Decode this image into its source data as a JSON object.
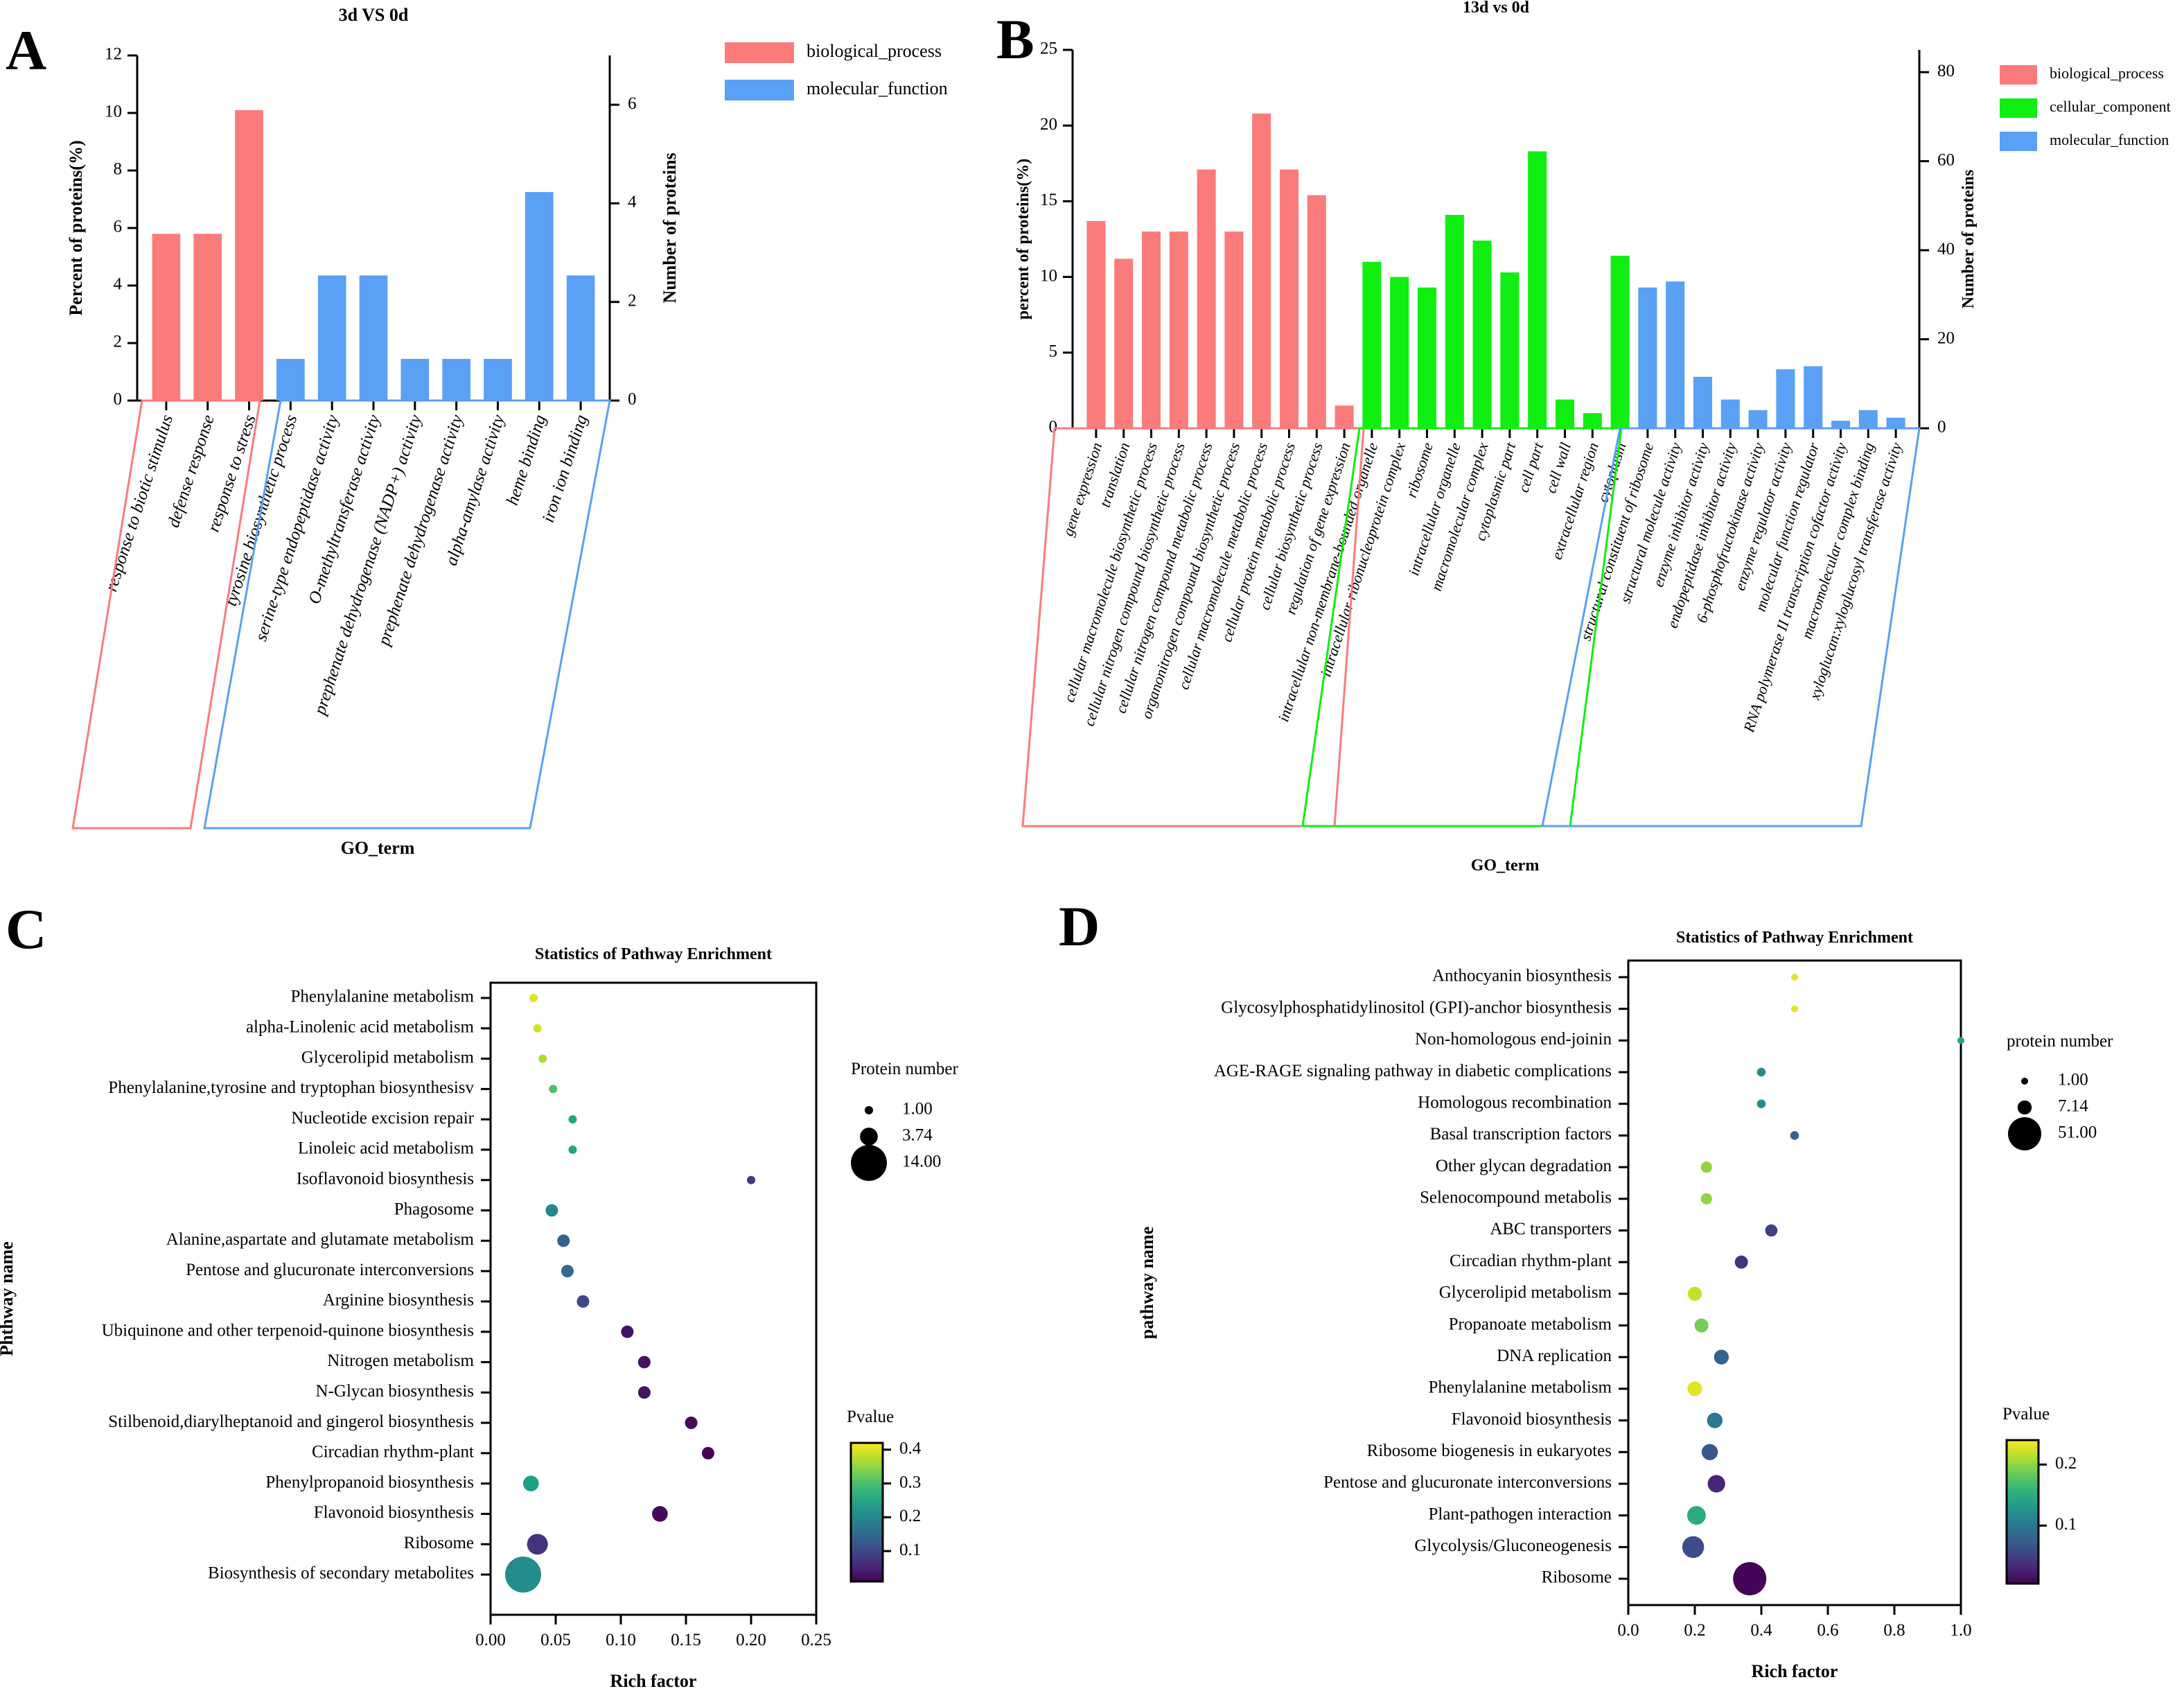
{
  "chart_data": [
    {
      "panel": "A",
      "type": "bar",
      "title": "3d VS 0d",
      "xlabel": "GO_term",
      "ylabel": "Percent of proteins(%)",
      "ylabel_right": "Number of proteins",
      "ylim": [
        0,
        12
      ],
      "ylim_right": [
        0,
        7
      ],
      "yticks": [
        0,
        2,
        4,
        6,
        8,
        10,
        12
      ],
      "yticks_right": [
        0,
        2,
        4,
        6
      ],
      "legend": [
        "biological_process",
        "molecular_function"
      ],
      "colors": {
        "biological_process": "#fb7b7b",
        "molecular_function": "#5aa0f5"
      },
      "categories": [
        "response to biotic stimulus",
        "defense response",
        "response to stress",
        "tyrosine biosynthetic process",
        "serine-type endopeptidase activity",
        "O-methyltransferase activity",
        "prephenate dehydrogenase (NADP+) activity",
        "prephenate dehydrogenase activity",
        "alpha-amylase activity",
        "heme binding",
        "iron ion binding"
      ],
      "groups": [
        "biological_process",
        "biological_process",
        "biological_process",
        "molecular_function",
        "molecular_function",
        "molecular_function",
        "molecular_function",
        "molecular_function",
        "molecular_function",
        "molecular_function",
        "molecular_function"
      ],
      "values": [
        5.8,
        5.8,
        10.1,
        1.45,
        4.35,
        4.35,
        1.45,
        1.45,
        1.45,
        7.25,
        4.35
      ]
    },
    {
      "panel": "B",
      "type": "bar",
      "title": "13d vs 0d",
      "xlabel": "GO_term",
      "ylabel": "percent of proteins(%)",
      "ylabel_right": "Number of proteins",
      "ylim": [
        0,
        25
      ],
      "ylim_right": [
        0,
        85
      ],
      "yticks": [
        0,
        5,
        10,
        15,
        20,
        25
      ],
      "yticks_right": [
        0,
        20,
        40,
        60,
        80
      ],
      "legend": [
        "biological_process",
        "cellular_component",
        "molecular_function"
      ],
      "colors": {
        "biological_process": "#fb7b7b",
        "cellular_component": "#11ee11",
        "molecular_function": "#5aa0f5"
      },
      "categories": [
        "gene expression",
        "translation",
        "cellular macromolecule biosynthetic process",
        "cellular nitrogen compound biosynthetic process",
        "cellular nitrogen compound metabolic process",
        "organonitrogen compound biosynthetic process",
        "cellular macromolecule metabolic process",
        "cellular protein metabolic process",
        "cellular biosynthetic process",
        "regulation of gene expression",
        "intracellular non-membrane-bounded organelle",
        "intracellular ribonucleoprotein complex",
        "ribosome",
        "intracellular organelle",
        "macromolecular complex",
        "cytoplasmic part",
        "cell part",
        "cell wall",
        "extracellular region",
        "cytoplasm",
        "structural constituent of ribosome",
        "structural molecule activity",
        "enzyme inhibitor activity",
        "endopeptidase inhibitor activity",
        "6-phosphofructokinase activity",
        "enzyme regulator activity",
        "molecular function regulator",
        "RNA polymerase II transcription cofactor activity",
        "macromolecular complex binding",
        "xyloglucan:xyloglucosyl transferase activity"
      ],
      "groups": [
        "biological_process",
        "biological_process",
        "biological_process",
        "biological_process",
        "biological_process",
        "biological_process",
        "biological_process",
        "biological_process",
        "biological_process",
        "biological_process",
        "cellular_component",
        "cellular_component",
        "cellular_component",
        "cellular_component",
        "cellular_component",
        "cellular_component",
        "cellular_component",
        "cellular_component",
        "cellular_component",
        "cellular_component",
        "molecular_function",
        "molecular_function",
        "molecular_function",
        "molecular_function",
        "molecular_function",
        "molecular_function",
        "molecular_function",
        "molecular_function",
        "molecular_function",
        "molecular_function"
      ],
      "values": [
        13.7,
        11.2,
        13.0,
        13.0,
        17.1,
        13.0,
        20.8,
        17.1,
        15.4,
        1.5,
        11.0,
        10.0,
        9.3,
        14.1,
        12.4,
        10.3,
        18.3,
        1.9,
        1.0,
        11.4,
        9.3,
        9.7,
        3.4,
        1.9,
        1.2,
        3.9,
        4.1,
        0.5,
        1.2,
        0.7
      ]
    },
    {
      "panel": "C",
      "type": "scatter",
      "title": "Statistics of Pathway Enrichment",
      "xlabel": "Rich factor",
      "ylabel": "Phthway name",
      "xlim": [
        0,
        0.25
      ],
      "xticks": [
        0.0,
        0.05,
        0.1,
        0.15,
        0.2,
        0.25
      ],
      "xtick_labels": [
        "0.00",
        "0.05",
        "0.10",
        "0.15",
        "0.20",
        "0.25"
      ],
      "size_legend_title": "Protein number",
      "size_legend": [
        "1.00",
        "3.74",
        "14.00"
      ],
      "color_legend_title": "Pvalue",
      "color_ticks": [
        "0.1",
        "0.2",
        "0.3",
        "0.4"
      ],
      "color_range": [
        0.01,
        0.42
      ],
      "pathways": [
        "Phenylalanine metabolism",
        "alpha-Linolenic acid metabolism",
        "Glycerolipid metabolism",
        "Phenylalanine,tyrosine and tryptophan biosynthesisv",
        "Nucleotide excision repair",
        "Linoleic acid metabolism",
        "Isoflavonoid biosynthesis",
        "Phagosome",
        "Alanine,aspartate and glutamate metabolism",
        "Pentose and glucuronate interconversions",
        "Arginine biosynthesis",
        "Ubiquinone and other terpenoid-quinone biosynthesis",
        "Nitrogen metabolism",
        "N-Glycan biosynthesis",
        "Stilbenoid,diarylheptanoid and gingerol biosynthesis",
        "Circadian rhythm-plant",
        "Phenylpropanoid biosynthesis",
        "Flavonoid biosynthesis",
        "Ribosome",
        "Biosynthesis of secondary metabolites"
      ],
      "rich_factor": [
        0.033,
        0.036,
        0.04,
        0.048,
        0.063,
        0.063,
        0.2,
        0.047,
        0.056,
        0.059,
        0.071,
        0.105,
        0.118,
        0.118,
        0.154,
        0.167,
        0.031,
        0.13,
        0.036,
        0.025
      ],
      "protein_number": [
        1,
        1,
        1,
        1,
        1,
        1,
        1,
        2,
        2,
        2,
        2,
        2,
        2,
        2,
        2,
        2,
        3,
        3,
        5,
        14
      ],
      "pvalue": [
        0.4,
        0.39,
        0.37,
        0.3,
        0.25,
        0.25,
        0.08,
        0.2,
        0.14,
        0.15,
        0.1,
        0.03,
        0.03,
        0.03,
        0.02,
        0.015,
        0.24,
        0.02,
        0.07,
        0.21
      ]
    },
    {
      "panel": "D",
      "type": "scatter",
      "title": "Statistics of Pathway Enrichment",
      "xlabel": "Rich factor",
      "ylabel": "pathway name",
      "xlim": [
        0,
        1.0
      ],
      "xticks": [
        0.0,
        0.2,
        0.4,
        0.6,
        0.8,
        1.0
      ],
      "xtick_labels": [
        "0.0",
        "0.2",
        "0.4",
        "0.6",
        "0.8",
        "1.0"
      ],
      "size_legend_title": "protein number",
      "size_legend": [
        "1.00",
        "7.14",
        "51.00"
      ],
      "color_legend_title": "Pvalue",
      "color_ticks": [
        "0.1",
        "0.2"
      ],
      "color_range": [
        0.005,
        0.24
      ],
      "pathways": [
        "Anthocyanin biosynthesis",
        "Glycosylphosphatidylinositol (GPI)-anchor biosynthesis",
        "Non-homologous end-joinin",
        "AGE-RAGE signaling pathway in diabetic complications",
        "Homologous recombination",
        "Basal transcription factors",
        "Other glycan degradation",
        "Selenocompound metabolis",
        "ABC transporters",
        "Circadian rhythm-plant",
        "Glycerolipid metabolism",
        "Propanoate metabolism",
        "DNA replication",
        "Phenylalanine metabolism",
        "Flavonoid biosynthesis",
        "Ribosome biogenesis in eukaryotes",
        "Pentose and glucuronate interconversions",
        "Plant-pathogen interaction",
        "Glycolysis/Gluconeogenesis",
        "Ribosome"
      ],
      "rich_factor": [
        0.5,
        0.5,
        1.0,
        0.4,
        0.4,
        0.5,
        0.235,
        0.235,
        0.43,
        0.34,
        0.2,
        0.22,
        0.28,
        0.2,
        0.26,
        0.245,
        0.265,
        0.205,
        0.195,
        0.365
      ],
      "protein_number": [
        1,
        1,
        1,
        2,
        2,
        2,
        4,
        4,
        5,
        6,
        7,
        7,
        8,
        8,
        9,
        10,
        12,
        14,
        20,
        51
      ],
      "pvalue": [
        0.23,
        0.23,
        0.14,
        0.12,
        0.12,
        0.08,
        0.2,
        0.2,
        0.05,
        0.04,
        0.22,
        0.19,
        0.08,
        0.23,
        0.1,
        0.07,
        0.03,
        0.15,
        0.06,
        0.008
      ]
    }
  ],
  "panel_labels": {
    "a": "A",
    "b": "B",
    "c": "C",
    "d": "D"
  }
}
